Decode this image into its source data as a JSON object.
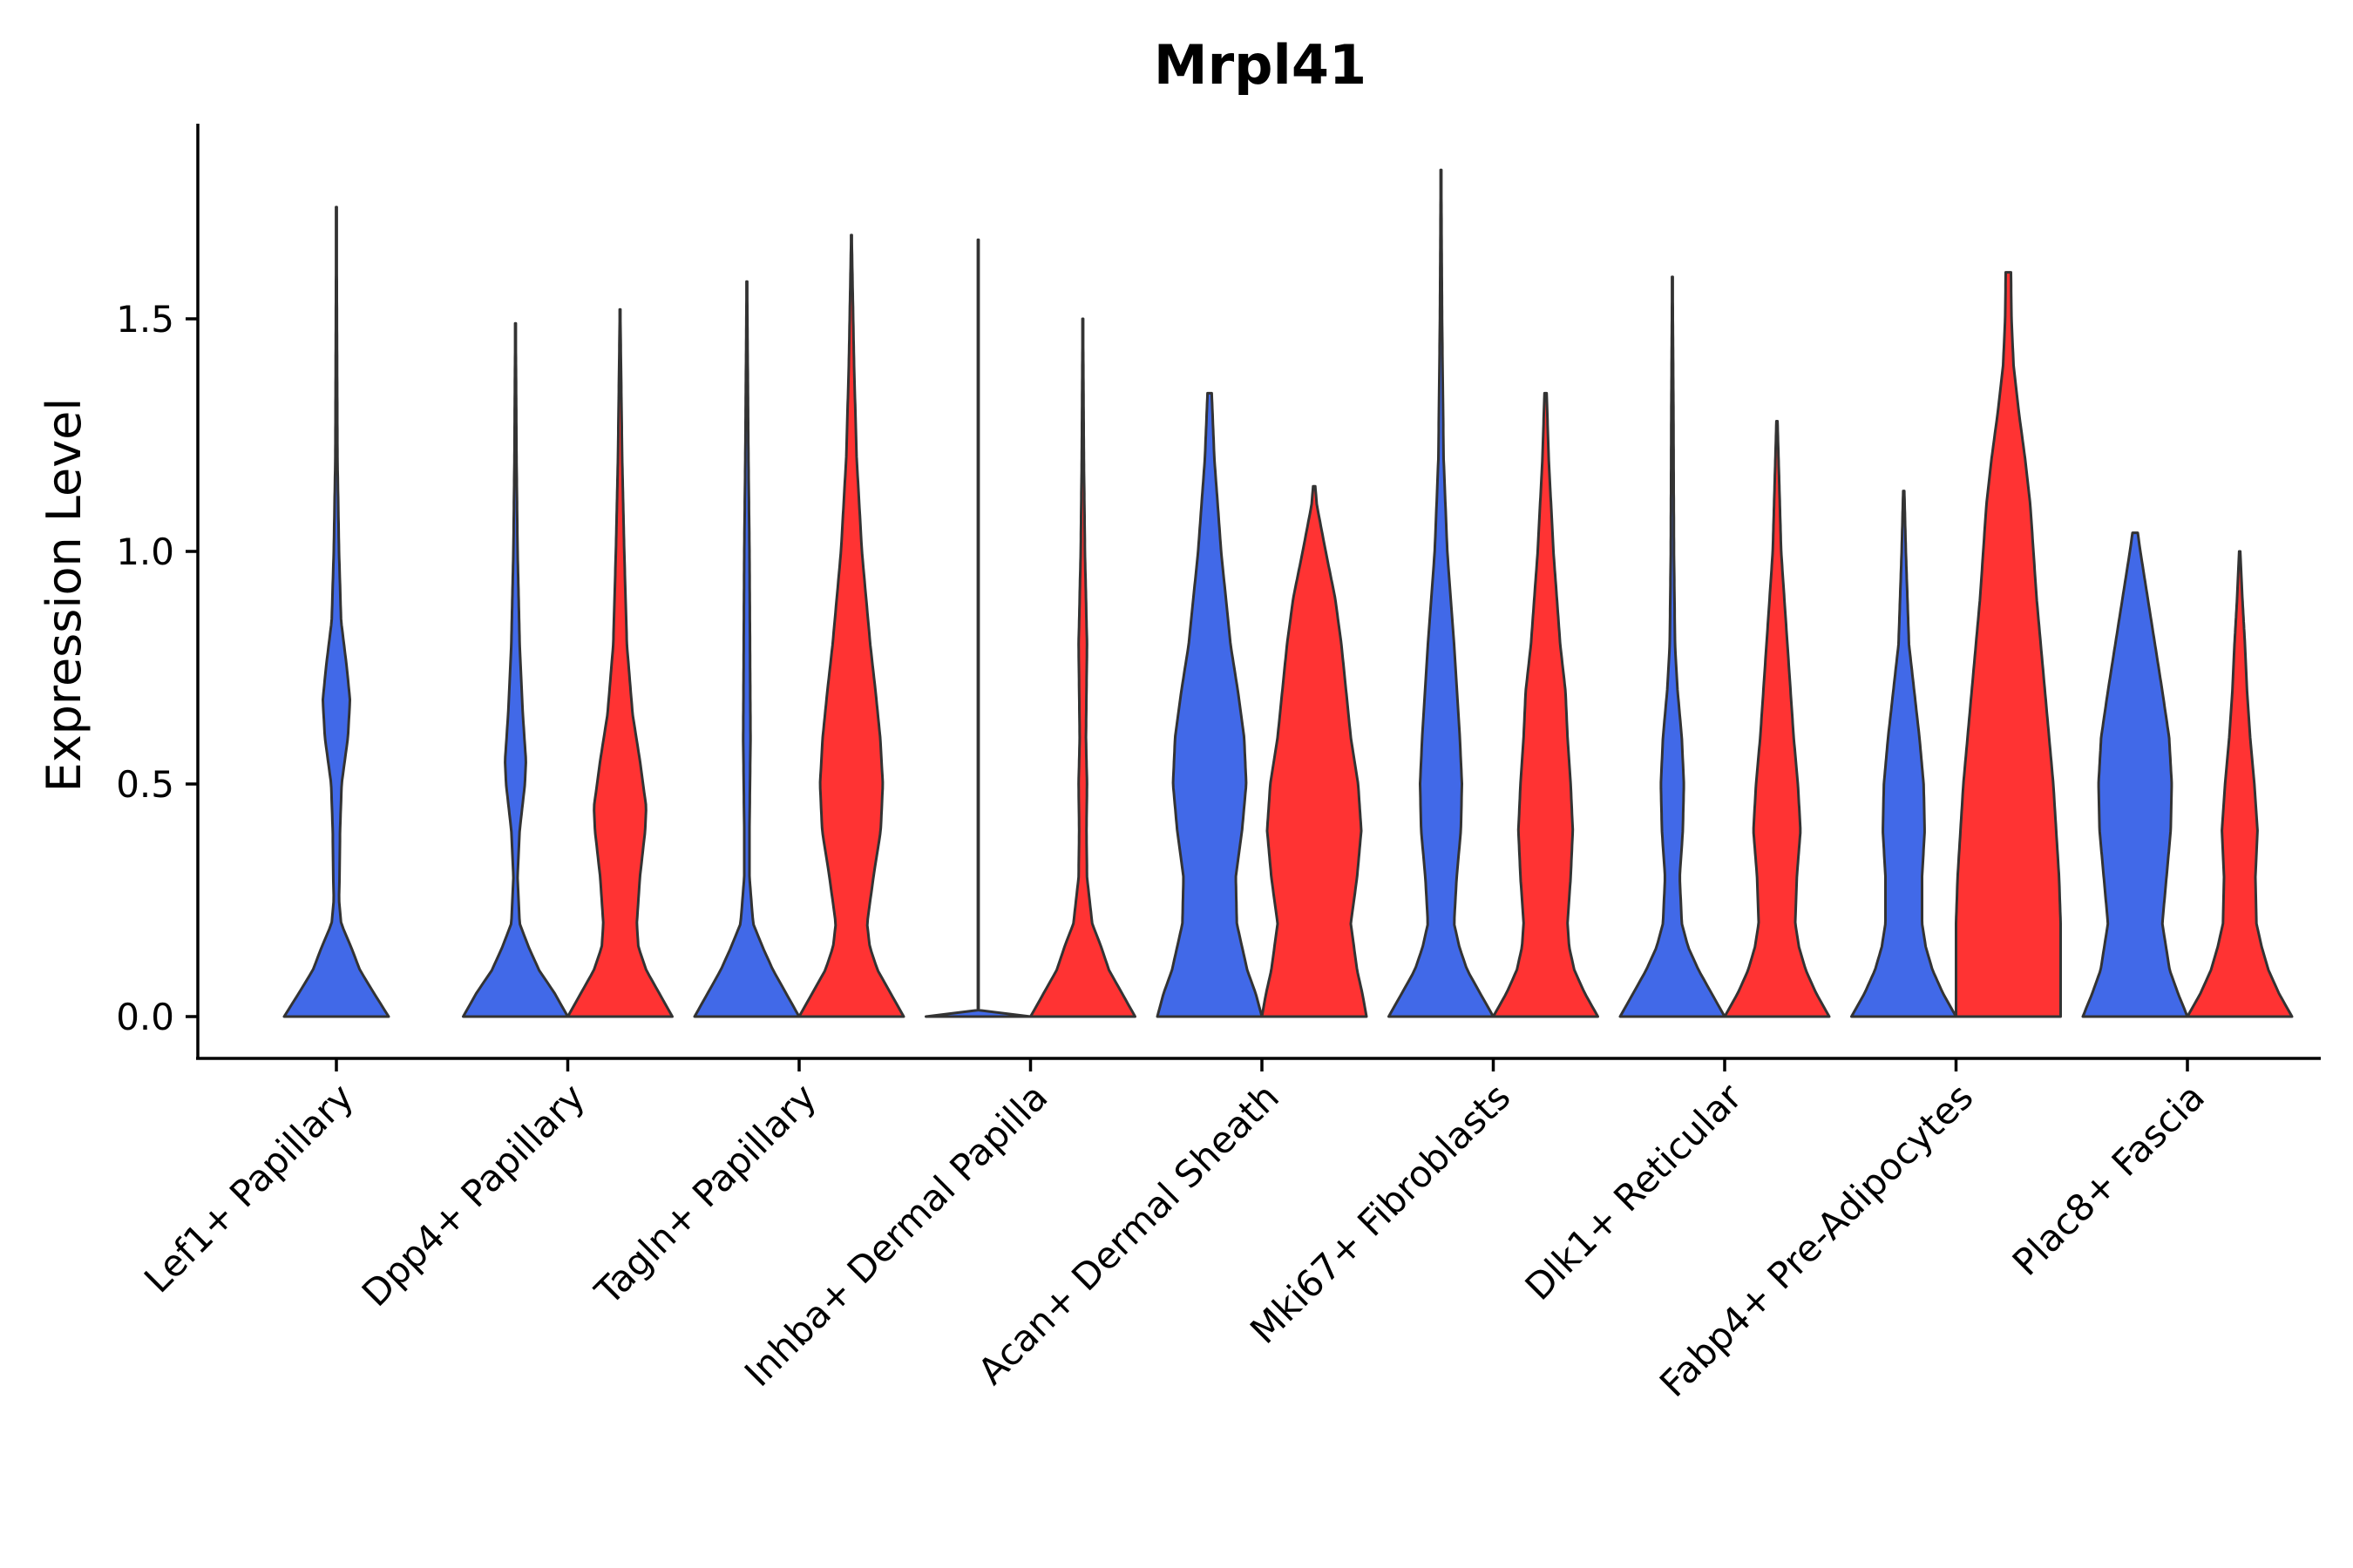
{
  "chart_data": {
    "type": "split-violin",
    "title": "Mrpl41",
    "xlabel": "",
    "ylabel": "Expression Level",
    "ylim": [
      -0.09,
      1.92
    ],
    "yticks": [
      0.0,
      0.5,
      1.0,
      1.5
    ],
    "ytick_labels": [
      "0.0",
      "0.5",
      "1.0",
      "1.5"
    ],
    "grid": false,
    "legend": "none",
    "colors": {
      "blue": "#4169E8",
      "red": "#FF3333"
    },
    "categories": [
      "Lef1+ Papillary",
      "Dpp4+ Papillary",
      "Tagln+ Papillary",
      "Inhba+ Dermal Papilla",
      "Acan+ Dermal Sheath",
      "Mki67+ Fibroblasts",
      "Dlk1+ Reticular",
      "Fabp4+ Pre-Adipocytes",
      "Plac8+ Fascia"
    ],
    "violins": [
      {
        "category": "Lef1+ Papillary",
        "group": "blue",
        "max": 1.74,
        "profile": [
          [
            0,
            1.0
          ],
          [
            0.05,
            0.72
          ],
          [
            0.1,
            0.45
          ],
          [
            0.15,
            0.28
          ],
          [
            0.2,
            0.09
          ],
          [
            0.25,
            0.05
          ],
          [
            0.3,
            0.06
          ],
          [
            0.4,
            0.07
          ],
          [
            0.5,
            0.1
          ],
          [
            0.6,
            0.22
          ],
          [
            0.68,
            0.26
          ],
          [
            0.75,
            0.2
          ],
          [
            0.85,
            0.09
          ],
          [
            1.0,
            0.05
          ],
          [
            1.2,
            0.02
          ],
          [
            1.5,
            0.01
          ],
          [
            1.74,
            0.003
          ]
        ]
      },
      {
        "category": "Dpp4+ Papillary",
        "group": "blue",
        "max": 1.49,
        "profile": [
          [
            0,
            1.0
          ],
          [
            0.05,
            0.75
          ],
          [
            0.1,
            0.45
          ],
          [
            0.15,
            0.25
          ],
          [
            0.2,
            0.08
          ],
          [
            0.3,
            0.04
          ],
          [
            0.4,
            0.08
          ],
          [
            0.5,
            0.18
          ],
          [
            0.55,
            0.2
          ],
          [
            0.65,
            0.14
          ],
          [
            0.8,
            0.08
          ],
          [
            1.0,
            0.04
          ],
          [
            1.2,
            0.02
          ],
          [
            1.49,
            0.004
          ]
        ]
      },
      {
        "category": "Dpp4+ Papillary",
        "group": "red",
        "max": 1.52,
        "profile": [
          [
            0,
            1.0
          ],
          [
            0.05,
            0.75
          ],
          [
            0.1,
            0.5
          ],
          [
            0.15,
            0.35
          ],
          [
            0.2,
            0.32
          ],
          [
            0.3,
            0.38
          ],
          [
            0.4,
            0.48
          ],
          [
            0.45,
            0.5
          ],
          [
            0.55,
            0.38
          ],
          [
            0.65,
            0.24
          ],
          [
            0.8,
            0.13
          ],
          [
            1.0,
            0.08
          ],
          [
            1.2,
            0.04
          ],
          [
            1.52,
            0.004
          ]
        ]
      },
      {
        "category": "Tagln+ Papillary",
        "group": "blue",
        "max": 1.58,
        "profile": [
          [
            0,
            1.0
          ],
          [
            0.05,
            0.75
          ],
          [
            0.1,
            0.5
          ],
          [
            0.15,
            0.3
          ],
          [
            0.2,
            0.12
          ],
          [
            0.3,
            0.05
          ],
          [
            0.4,
            0.05
          ],
          [
            0.6,
            0.07
          ],
          [
            0.8,
            0.06
          ],
          [
            1.0,
            0.05
          ],
          [
            1.2,
            0.03
          ],
          [
            1.58,
            0.004
          ]
        ]
      },
      {
        "category": "Tagln+ Papillary",
        "group": "red",
        "max": 1.68,
        "profile": [
          [
            0,
            1.0
          ],
          [
            0.05,
            0.75
          ],
          [
            0.1,
            0.5
          ],
          [
            0.15,
            0.35
          ],
          [
            0.2,
            0.3
          ],
          [
            0.3,
            0.42
          ],
          [
            0.4,
            0.56
          ],
          [
            0.5,
            0.6
          ],
          [
            0.6,
            0.55
          ],
          [
            0.7,
            0.46
          ],
          [
            0.8,
            0.36
          ],
          [
            1.0,
            0.2
          ],
          [
            1.2,
            0.1
          ],
          [
            1.4,
            0.05
          ],
          [
            1.68,
            0.004
          ]
        ]
      },
      {
        "category": "Inhba+ Dermal Papilla",
        "group": "blue",
        "max": 1.67,
        "profile": [
          [
            0,
            1.0
          ],
          [
            0.004,
            0.02
          ],
          [
            0.01,
            0.005
          ],
          [
            1.67,
            0.004
          ]
        ]
      },
      {
        "category": "Inhba+ Dermal Papilla",
        "group": "red",
        "max": 1.5,
        "profile": [
          [
            0,
            1.0
          ],
          [
            0.05,
            0.75
          ],
          [
            0.1,
            0.5
          ],
          [
            0.15,
            0.35
          ],
          [
            0.2,
            0.18
          ],
          [
            0.3,
            0.08
          ],
          [
            0.4,
            0.07
          ],
          [
            0.5,
            0.08
          ],
          [
            0.6,
            0.06
          ],
          [
            0.8,
            0.08
          ],
          [
            1.0,
            0.04
          ],
          [
            1.2,
            0.02
          ],
          [
            1.5,
            0.004
          ]
        ]
      },
      {
        "category": "Acan+ Dermal Sheath",
        "group": "blue",
        "max": 1.34,
        "profile": [
          [
            0,
            1.0
          ],
          [
            0.05,
            0.88
          ],
          [
            0.1,
            0.72
          ],
          [
            0.2,
            0.52
          ],
          [
            0.3,
            0.5
          ],
          [
            0.4,
            0.62
          ],
          [
            0.5,
            0.7
          ],
          [
            0.6,
            0.66
          ],
          [
            0.7,
            0.54
          ],
          [
            0.8,
            0.4
          ],
          [
            1.0,
            0.22
          ],
          [
            1.2,
            0.09
          ],
          [
            1.34,
            0.04
          ]
        ]
      },
      {
        "category": "Acan+ Dermal Sheath",
        "group": "red",
        "max": 1.14,
        "profile": [
          [
            0,
            1.0
          ],
          [
            0.05,
            0.92
          ],
          [
            0.1,
            0.82
          ],
          [
            0.2,
            0.7
          ],
          [
            0.3,
            0.82
          ],
          [
            0.4,
            0.9
          ],
          [
            0.5,
            0.84
          ],
          [
            0.6,
            0.7
          ],
          [
            0.8,
            0.52
          ],
          [
            0.9,
            0.4
          ],
          [
            1.0,
            0.22
          ],
          [
            1.1,
            0.05
          ],
          [
            1.14,
            0.02
          ]
        ]
      },
      {
        "category": "Mki67+ Fibroblasts",
        "group": "blue",
        "max": 1.82,
        "profile": [
          [
            0,
            1.0
          ],
          [
            0.05,
            0.75
          ],
          [
            0.1,
            0.5
          ],
          [
            0.15,
            0.35
          ],
          [
            0.2,
            0.25
          ],
          [
            0.3,
            0.3
          ],
          [
            0.4,
            0.38
          ],
          [
            0.5,
            0.4
          ],
          [
            0.6,
            0.36
          ],
          [
            0.8,
            0.25
          ],
          [
            1.0,
            0.12
          ],
          [
            1.2,
            0.05
          ],
          [
            1.5,
            0.02
          ],
          [
            1.82,
            0.004
          ]
        ]
      },
      {
        "category": "Mki67+ Fibroblasts",
        "group": "red",
        "max": 1.34,
        "profile": [
          [
            0,
            1.0
          ],
          [
            0.05,
            0.75
          ],
          [
            0.1,
            0.55
          ],
          [
            0.15,
            0.45
          ],
          [
            0.2,
            0.42
          ],
          [
            0.3,
            0.48
          ],
          [
            0.4,
            0.52
          ],
          [
            0.5,
            0.48
          ],
          [
            0.6,
            0.42
          ],
          [
            0.7,
            0.38
          ],
          [
            0.8,
            0.28
          ],
          [
            1.0,
            0.15
          ],
          [
            1.2,
            0.06
          ],
          [
            1.34,
            0.02
          ]
        ]
      },
      {
        "category": "Dlk1+ Reticular",
        "group": "blue",
        "max": 1.59,
        "profile": [
          [
            0,
            1.0
          ],
          [
            0.05,
            0.75
          ],
          [
            0.1,
            0.5
          ],
          [
            0.15,
            0.3
          ],
          [
            0.2,
            0.18
          ],
          [
            0.3,
            0.14
          ],
          [
            0.4,
            0.2
          ],
          [
            0.5,
            0.22
          ],
          [
            0.6,
            0.18
          ],
          [
            0.7,
            0.1
          ],
          [
            0.8,
            0.05
          ],
          [
            1.0,
            0.03
          ],
          [
            1.3,
            0.02
          ],
          [
            1.59,
            0.004
          ]
        ]
      },
      {
        "category": "Dlk1+ Reticular",
        "group": "red",
        "max": 1.28,
        "profile": [
          [
            0,
            1.0
          ],
          [
            0.05,
            0.75
          ],
          [
            0.1,
            0.55
          ],
          [
            0.15,
            0.42
          ],
          [
            0.2,
            0.35
          ],
          [
            0.3,
            0.38
          ],
          [
            0.4,
            0.45
          ],
          [
            0.5,
            0.4
          ],
          [
            0.6,
            0.32
          ],
          [
            0.7,
            0.26
          ],
          [
            0.8,
            0.2
          ],
          [
            1.0,
            0.08
          ],
          [
            1.28,
            0.01
          ]
        ]
      },
      {
        "category": "Fabp4+ Pre-Adipocytes",
        "group": "blue",
        "max": 1.13,
        "profile": [
          [
            0,
            1.0
          ],
          [
            0.05,
            0.75
          ],
          [
            0.1,
            0.55
          ],
          [
            0.15,
            0.42
          ],
          [
            0.2,
            0.35
          ],
          [
            0.3,
            0.35
          ],
          [
            0.4,
            0.4
          ],
          [
            0.5,
            0.38
          ],
          [
            0.6,
            0.3
          ],
          [
            0.7,
            0.2
          ],
          [
            0.8,
            0.1
          ],
          [
            1.0,
            0.04
          ],
          [
            1.13,
            0.01
          ]
        ]
      },
      {
        "category": "Fabp4+ Pre-Adipocytes",
        "group": "red",
        "max": 1.6,
        "profile": [
          [
            0,
            1.0
          ],
          [
            0.2,
            1.0
          ],
          [
            0.3,
            0.97
          ],
          [
            0.5,
            0.86
          ],
          [
            0.7,
            0.7
          ],
          [
            0.9,
            0.54
          ],
          [
            1.1,
            0.42
          ],
          [
            1.2,
            0.32
          ],
          [
            1.3,
            0.2
          ],
          [
            1.4,
            0.1
          ],
          [
            1.5,
            0.06
          ],
          [
            1.6,
            0.05
          ]
        ]
      },
      {
        "category": "Plac8+ Fascia",
        "group": "blue",
        "max": 1.04,
        "profile": [
          [
            0,
            1.0
          ],
          [
            0.05,
            0.82
          ],
          [
            0.1,
            0.66
          ],
          [
            0.2,
            0.52
          ],
          [
            0.3,
            0.6
          ],
          [
            0.4,
            0.68
          ],
          [
            0.5,
            0.7
          ],
          [
            0.6,
            0.65
          ],
          [
            0.7,
            0.52
          ],
          [
            0.8,
            0.38
          ],
          [
            0.9,
            0.24
          ],
          [
            1.0,
            0.1
          ],
          [
            1.04,
            0.05
          ]
        ]
      },
      {
        "category": "Plac8+ Fascia",
        "group": "red",
        "max": 1.0,
        "profile": [
          [
            0,
            1.0
          ],
          [
            0.05,
            0.75
          ],
          [
            0.1,
            0.55
          ],
          [
            0.15,
            0.42
          ],
          [
            0.2,
            0.32
          ],
          [
            0.3,
            0.3
          ],
          [
            0.4,
            0.34
          ],
          [
            0.5,
            0.28
          ],
          [
            0.6,
            0.2
          ],
          [
            0.7,
            0.14
          ],
          [
            0.8,
            0.1
          ],
          [
            0.9,
            0.05
          ],
          [
            1.0,
            0.01
          ]
        ]
      }
    ]
  }
}
